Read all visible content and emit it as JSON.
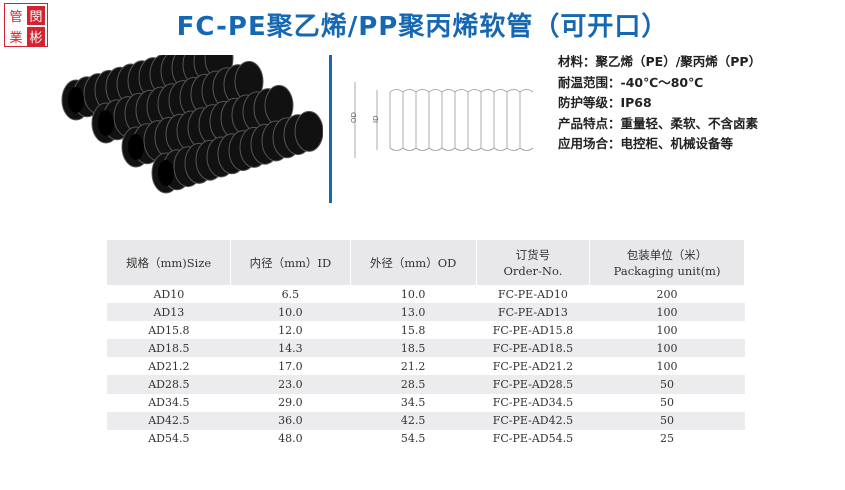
{
  "logo": {
    "chars": [
      "管",
      "閔",
      "業",
      "彬"
    ]
  },
  "title": "FC-PE聚乙烯/PP聚丙烯软管（可开口）",
  "diagram": {
    "od_label": "OD",
    "id_label": "ID"
  },
  "specs": [
    "材料：聚乙烯（PE）/聚丙烯（PP）",
    "耐温范围：-40℃～80℃",
    "防护等级：IP68",
    "产品特点：重量轻、柔软、不含卤素",
    "应用场合：电控柜、机械设备等"
  ],
  "table": {
    "headers": [
      [
        "规格（mm)Size",
        ""
      ],
      [
        "内径（mm）ID",
        ""
      ],
      [
        "外径（mm）OD",
        ""
      ],
      [
        "订货号",
        "Order-No."
      ],
      [
        "包装单位（米）",
        "Packaging unit(m)"
      ]
    ],
    "rows": [
      [
        "AD10",
        "6.5",
        "10.0",
        "FC-PE-AD10",
        "200"
      ],
      [
        "AD13",
        "10.0",
        "13.0",
        "FC-PE-AD13",
        "100"
      ],
      [
        "AD15.8",
        "12.0",
        "15.8",
        "FC-PE-AD15.8",
        "100"
      ],
      [
        "AD18.5",
        "14.3",
        "18.5",
        "FC-PE-AD18.5",
        "100"
      ],
      [
        "AD21.2",
        "17.0",
        "21.2",
        "FC-PE-AD21.2",
        "100"
      ],
      [
        "AD28.5",
        "23.0",
        "28.5",
        "FC-PE-AD28.5",
        "50"
      ],
      [
        "AD34.5",
        "29.0",
        "34.5",
        "FC-PE-AD34.5",
        "50"
      ],
      [
        "AD42.5",
        "36.0",
        "42.5",
        "FC-PE-AD42.5",
        "50"
      ],
      [
        "AD54.5",
        "48.0",
        "54.5",
        "FC-PE-AD54.5",
        "25"
      ]
    ]
  }
}
